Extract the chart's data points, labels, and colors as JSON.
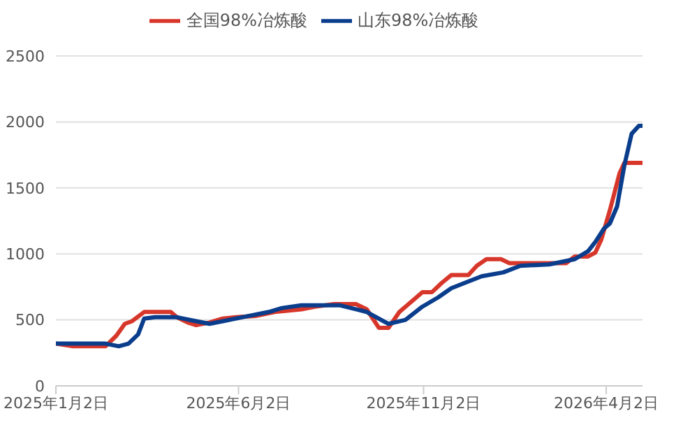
{
  "chart_data": {
    "type": "line",
    "legend": "top",
    "grid": "y",
    "marker": "none",
    "line_style": "solid",
    "xlim": [
      "2025-01-02",
      "2026-05-02"
    ],
    "xticks": [
      {
        "value": "2025-01-02",
        "label": "2025年1月2日"
      },
      {
        "value": "2025-06-02",
        "label": "2025年6月2日"
      },
      {
        "value": "2025-11-02",
        "label": "2025年11月2日"
      },
      {
        "value": "2026-04-02",
        "label": "2026年4月2日"
      }
    ],
    "ylim": [
      0,
      2500
    ],
    "yticks": [
      0,
      500,
      1000,
      1500,
      2000,
      2500
    ],
    "series": [
      {
        "name": "全国98%冶炼酸",
        "color": "#d7372a",
        "x": [
          "2025-01-02",
          "2025-01-16",
          "2025-02-01",
          "2025-02-12",
          "2025-02-21",
          "2025-02-28",
          "2025-03-06",
          "2025-03-16",
          "2025-04-07",
          "2025-04-12",
          "2025-04-21",
          "2025-04-28",
          "2025-05-09",
          "2025-05-20",
          "2025-05-31",
          "2025-06-16",
          "2025-07-02",
          "2025-07-24",
          "2025-08-04",
          "2025-08-20",
          "2025-09-07",
          "2025-09-16",
          "2025-09-26",
          "2025-10-04",
          "2025-10-13",
          "2025-10-27",
          "2025-11-01",
          "2025-11-09",
          "2025-11-17",
          "2025-11-25",
          "2025-12-09",
          "2025-12-16",
          "2025-12-24",
          "2026-01-05",
          "2026-01-12",
          "2026-02-28",
          "2026-03-07",
          "2026-03-18",
          "2026-03-24",
          "2026-03-29",
          "2026-04-05",
          "2026-04-13",
          "2026-04-17",
          "2026-05-02"
        ],
        "values": [
          320,
          300,
          300,
          300,
          380,
          470,
          490,
          560,
          560,
          520,
          480,
          460,
          480,
          510,
          520,
          530,
          560,
          580,
          600,
          620,
          620,
          580,
          440,
          440,
          560,
          670,
          710,
          710,
          780,
          840,
          840,
          910,
          960,
          960,
          930,
          930,
          980,
          980,
          1010,
          1110,
          1330,
          1610,
          1690,
          1690
        ]
      },
      {
        "name": "山东98%冶炼酸",
        "color": "#0a3d8c",
        "x": [
          "2025-01-02",
          "2025-02-12",
          "2025-02-23",
          "2025-03-03",
          "2025-03-11",
          "2025-03-16",
          "2025-03-25",
          "2025-04-12",
          "2025-04-28",
          "2025-05-09",
          "2025-05-20",
          "2025-06-05",
          "2025-06-27",
          "2025-07-08",
          "2025-07-24",
          "2025-08-25",
          "2025-09-16",
          "2025-10-04",
          "2025-10-18",
          "2025-11-01",
          "2025-11-14",
          "2025-11-25",
          "2025-12-06",
          "2025-12-20",
          "2026-01-07",
          "2026-01-21",
          "2026-02-14",
          "2026-03-07",
          "2026-03-18",
          "2026-03-24",
          "2026-03-31",
          "2026-04-05",
          "2026-04-11",
          "2026-04-17",
          "2026-04-23",
          "2026-04-29",
          "2026-05-02"
        ],
        "values": [
          320,
          320,
          300,
          320,
          390,
          510,
          520,
          520,
          490,
          470,
          490,
          520,
          560,
          590,
          610,
          610,
          560,
          470,
          500,
          600,
          670,
          740,
          780,
          830,
          860,
          910,
          920,
          960,
          1020,
          1090,
          1190,
          1230,
          1360,
          1670,
          1910,
          1970,
          1970
        ]
      }
    ]
  }
}
